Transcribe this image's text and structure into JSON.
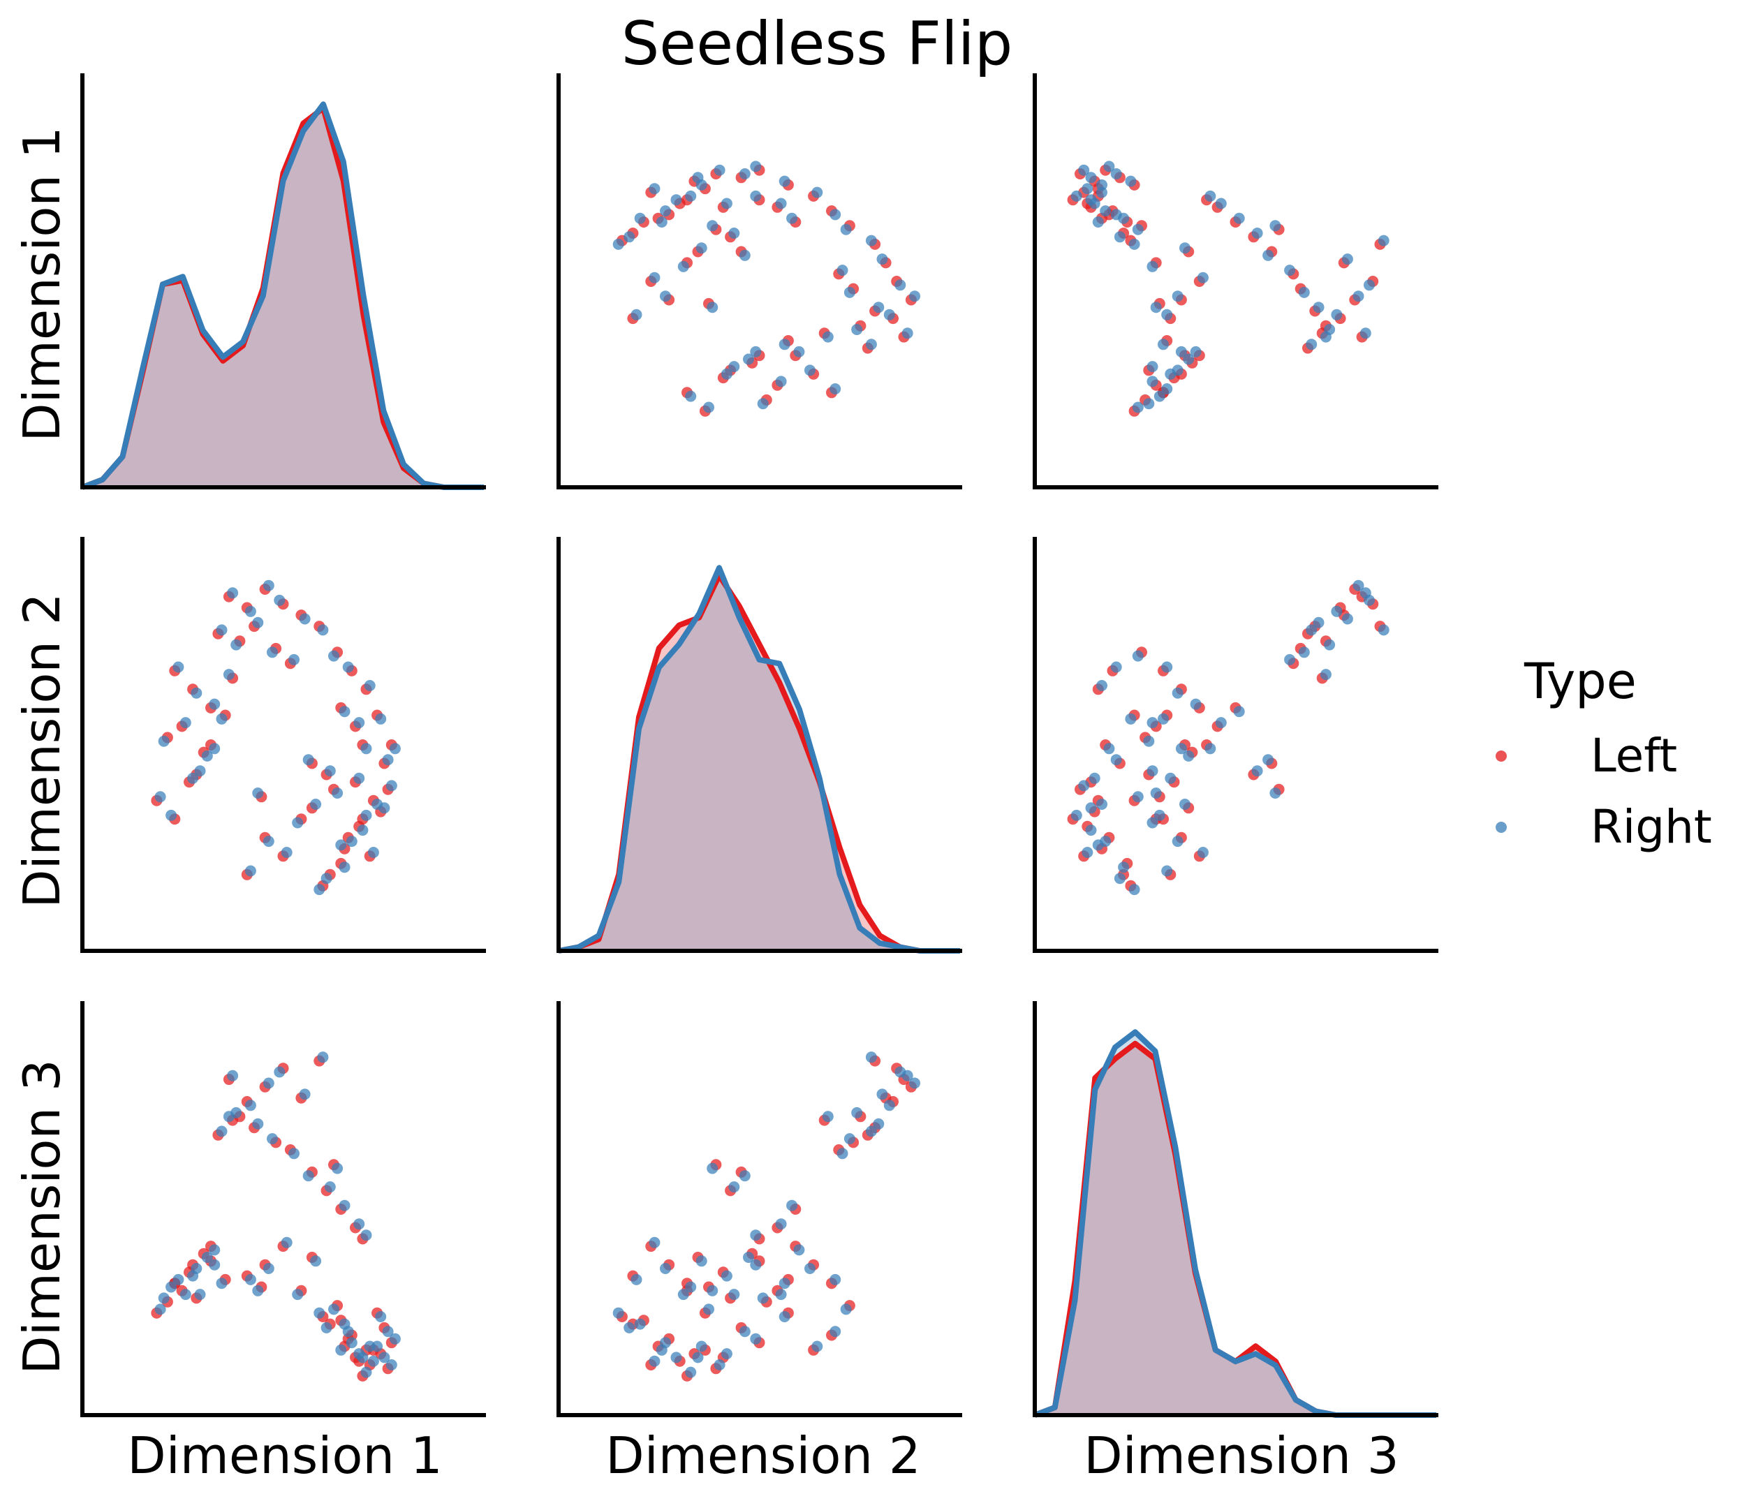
{
  "chart_data": {
    "type": "scatter",
    "kind": "pairplot",
    "title": "Seedless Flip",
    "variables": [
      "Dimension 1",
      "Dimension 2",
      "Dimension 3"
    ],
    "diagonal": "kde",
    "offdiagonal": "scatter",
    "ticks_shown": false,
    "grid": false,
    "legend": {
      "title": "Type",
      "placement": "right",
      "entries": [
        {
          "label": "Left",
          "color": "#e41a1c"
        },
        {
          "label": "Right",
          "color": "#377eb8"
        }
      ]
    },
    "series_colors": {
      "Left": "#e41a1c",
      "Right": "#377eb8"
    },
    "fill_overlap_color": "#c5b2c3",
    "axis_ranges": {
      "Dimension 1": [
        0.0,
        1.0
      ],
      "Dimension 2": [
        0.0,
        1.0
      ],
      "Dimension 3": [
        0.0,
        1.0
      ]
    },
    "kde_range": [
      0.0,
      1.0
    ],
    "kde": {
      "Dimension 1": {
        "Left": {
          "x": [
            0.0,
            0.05,
            0.1,
            0.15,
            0.2,
            0.25,
            0.3,
            0.35,
            0.4,
            0.45,
            0.5,
            0.55,
            0.6,
            0.65,
            0.7,
            0.75,
            0.8,
            0.85,
            0.9,
            0.95,
            1.0
          ],
          "y": [
            0.0,
            0.02,
            0.08,
            0.3,
            0.53,
            0.54,
            0.4,
            0.33,
            0.37,
            0.52,
            0.82,
            0.95,
            0.99,
            0.8,
            0.45,
            0.17,
            0.05,
            0.01,
            0.0,
            0.0,
            0.0
          ]
        },
        "Right": {
          "x": [
            0.0,
            0.05,
            0.1,
            0.15,
            0.2,
            0.25,
            0.3,
            0.35,
            0.4,
            0.45,
            0.5,
            0.55,
            0.6,
            0.65,
            0.7,
            0.75,
            0.8,
            0.85,
            0.9,
            0.95,
            1.0
          ],
          "y": [
            0.0,
            0.02,
            0.08,
            0.31,
            0.53,
            0.55,
            0.41,
            0.34,
            0.38,
            0.5,
            0.8,
            0.93,
            1.0,
            0.85,
            0.5,
            0.2,
            0.06,
            0.01,
            0.0,
            0.0,
            0.0
          ]
        }
      },
      "Dimension 2": {
        "Left": {
          "x": [
            0.0,
            0.05,
            0.1,
            0.15,
            0.2,
            0.25,
            0.3,
            0.35,
            0.4,
            0.45,
            0.5,
            0.55,
            0.6,
            0.65,
            0.7,
            0.75,
            0.8,
            0.85,
            0.9,
            0.95,
            1.0
          ],
          "y": [
            0.0,
            0.01,
            0.03,
            0.2,
            0.61,
            0.79,
            0.85,
            0.87,
            0.98,
            0.9,
            0.8,
            0.7,
            0.58,
            0.44,
            0.27,
            0.12,
            0.04,
            0.01,
            0.0,
            0.0,
            0.0
          ]
        },
        "Right": {
          "x": [
            0.0,
            0.05,
            0.1,
            0.15,
            0.2,
            0.25,
            0.3,
            0.35,
            0.4,
            0.45,
            0.5,
            0.55,
            0.6,
            0.65,
            0.7,
            0.75,
            0.8,
            0.85,
            0.9,
            0.95,
            1.0
          ],
          "y": [
            0.0,
            0.01,
            0.04,
            0.18,
            0.58,
            0.74,
            0.8,
            0.88,
            1.0,
            0.87,
            0.76,
            0.75,
            0.63,
            0.45,
            0.2,
            0.06,
            0.02,
            0.01,
            0.0,
            0.0,
            0.0
          ]
        }
      },
      "Dimension 3": {
        "Left": {
          "x": [
            0.0,
            0.05,
            0.1,
            0.15,
            0.2,
            0.25,
            0.3,
            0.35,
            0.4,
            0.45,
            0.5,
            0.55,
            0.6,
            0.65,
            0.7,
            0.75,
            0.8,
            0.85,
            0.9,
            0.95,
            1.0
          ],
          "y": [
            0.0,
            0.02,
            0.35,
            0.88,
            0.93,
            0.97,
            0.93,
            0.68,
            0.37,
            0.17,
            0.14,
            0.18,
            0.14,
            0.04,
            0.01,
            0.0,
            0.0,
            0.0,
            0.0,
            0.0,
            0.0
          ]
        },
        "Right": {
          "x": [
            0.0,
            0.05,
            0.1,
            0.15,
            0.2,
            0.25,
            0.3,
            0.35,
            0.4,
            0.45,
            0.5,
            0.55,
            0.6,
            0.65,
            0.7,
            0.75,
            0.8,
            0.85,
            0.9,
            0.95,
            1.0
          ],
          "y": [
            0.0,
            0.02,
            0.3,
            0.85,
            0.96,
            1.0,
            0.95,
            0.7,
            0.38,
            0.17,
            0.14,
            0.16,
            0.13,
            0.04,
            0.01,
            0.0,
            0.0,
            0.0,
            0.0,
            0.0,
            0.0
          ]
        }
      }
    },
    "points": {
      "Left": [
        [
          0.35,
          0.9,
          0.85
        ],
        [
          0.5,
          0.88,
          0.88
        ],
        [
          0.55,
          0.85,
          0.8
        ],
        [
          0.45,
          0.92,
          0.83
        ],
        [
          0.4,
          0.87,
          0.79
        ],
        [
          0.6,
          0.82,
          0.9
        ],
        [
          0.2,
          0.7,
          0.3
        ],
        [
          0.25,
          0.65,
          0.35
        ],
        [
          0.22,
          0.55,
          0.28
        ],
        [
          0.3,
          0.6,
          0.4
        ],
        [
          0.18,
          0.52,
          0.25
        ],
        [
          0.28,
          0.48,
          0.38
        ],
        [
          0.7,
          0.4,
          0.1
        ],
        [
          0.75,
          0.35,
          0.12
        ],
        [
          0.72,
          0.3,
          0.05
        ],
        [
          0.68,
          0.25,
          0.15
        ],
        [
          0.74,
          0.2,
          0.08
        ],
        [
          0.66,
          0.18,
          0.2
        ],
        [
          0.62,
          0.42,
          0.55
        ],
        [
          0.64,
          0.38,
          0.62
        ],
        [
          0.58,
          0.45,
          0.6
        ],
        [
          0.7,
          0.55,
          0.45
        ],
        [
          0.66,
          0.6,
          0.5
        ],
        [
          0.72,
          0.5,
          0.42
        ],
        [
          0.15,
          0.35,
          0.22
        ],
        [
          0.2,
          0.3,
          0.3
        ],
        [
          0.45,
          0.25,
          0.35
        ],
        [
          0.5,
          0.2,
          0.4
        ],
        [
          0.4,
          0.15,
          0.32
        ],
        [
          0.55,
          0.3,
          0.28
        ],
        [
          0.78,
          0.45,
          0.18
        ],
        [
          0.8,
          0.5,
          0.14
        ],
        [
          0.76,
          0.58,
          0.22
        ],
        [
          0.73,
          0.65,
          0.12
        ],
        [
          0.69,
          0.7,
          0.16
        ],
        [
          0.65,
          0.75,
          0.24
        ],
        [
          0.32,
          0.8,
          0.7
        ],
        [
          0.38,
          0.78,
          0.75
        ],
        [
          0.42,
          0.82,
          0.72
        ],
        [
          0.48,
          0.76,
          0.68
        ],
        [
          0.52,
          0.72,
          0.66
        ],
        [
          0.36,
          0.68,
          0.74
        ],
        [
          0.24,
          0.4,
          0.33
        ],
        [
          0.26,
          0.42,
          0.26
        ],
        [
          0.3,
          0.5,
          0.36
        ],
        [
          0.34,
          0.58,
          0.31
        ],
        [
          0.44,
          0.36,
          0.29
        ],
        [
          0.58,
          0.33,
          0.37
        ],
        [
          0.71,
          0.28,
          0.09
        ],
        [
          0.77,
          0.32,
          0.11
        ],
        [
          0.79,
          0.38,
          0.07
        ],
        [
          0.67,
          0.22,
          0.13
        ],
        [
          0.63,
          0.15,
          0.19
        ],
        [
          0.61,
          0.12,
          0.21
        ]
      ],
      "Right": [
        [
          0.36,
          0.91,
          0.86
        ],
        [
          0.49,
          0.89,
          0.87
        ],
        [
          0.56,
          0.84,
          0.81
        ],
        [
          0.46,
          0.93,
          0.84
        ],
        [
          0.41,
          0.86,
          0.78
        ],
        [
          0.61,
          0.81,
          0.91
        ],
        [
          0.21,
          0.71,
          0.31
        ],
        [
          0.26,
          0.64,
          0.34
        ],
        [
          0.23,
          0.56,
          0.27
        ],
        [
          0.31,
          0.61,
          0.39
        ],
        [
          0.17,
          0.51,
          0.26
        ],
        [
          0.29,
          0.47,
          0.37
        ],
        [
          0.71,
          0.41,
          0.11
        ],
        [
          0.76,
          0.34,
          0.13
        ],
        [
          0.73,
          0.31,
          0.06
        ],
        [
          0.69,
          0.24,
          0.14
        ],
        [
          0.75,
          0.21,
          0.09
        ],
        [
          0.67,
          0.17,
          0.19
        ],
        [
          0.63,
          0.43,
          0.56
        ],
        [
          0.65,
          0.37,
          0.61
        ],
        [
          0.57,
          0.46,
          0.59
        ],
        [
          0.71,
          0.56,
          0.46
        ],
        [
          0.67,
          0.59,
          0.51
        ],
        [
          0.73,
          0.49,
          0.43
        ],
        [
          0.16,
          0.36,
          0.23
        ],
        [
          0.19,
          0.31,
          0.29
        ],
        [
          0.46,
          0.24,
          0.34
        ],
        [
          0.51,
          0.21,
          0.41
        ],
        [
          0.41,
          0.16,
          0.31
        ],
        [
          0.54,
          0.29,
          0.27
        ],
        [
          0.79,
          0.46,
          0.17
        ],
        [
          0.81,
          0.49,
          0.15
        ],
        [
          0.77,
          0.57,
          0.21
        ],
        [
          0.74,
          0.66,
          0.13
        ],
        [
          0.68,
          0.71,
          0.17
        ],
        [
          0.64,
          0.74,
          0.23
        ],
        [
          0.33,
          0.81,
          0.71
        ],
        [
          0.37,
          0.77,
          0.76
        ],
        [
          0.43,
          0.83,
          0.73
        ],
        [
          0.47,
          0.75,
          0.69
        ],
        [
          0.53,
          0.73,
          0.65
        ],
        [
          0.35,
          0.69,
          0.75
        ],
        [
          0.25,
          0.41,
          0.32
        ],
        [
          0.27,
          0.43,
          0.27
        ],
        [
          0.31,
          0.49,
          0.35
        ],
        [
          0.33,
          0.57,
          0.3
        ],
        [
          0.43,
          0.37,
          0.28
        ],
        [
          0.59,
          0.34,
          0.36
        ],
        [
          0.72,
          0.27,
          0.1
        ],
        [
          0.78,
          0.33,
          0.1
        ],
        [
          0.8,
          0.39,
          0.08
        ],
        [
          0.66,
          0.23,
          0.12
        ],
        [
          0.62,
          0.14,
          0.18
        ],
        [
          0.6,
          0.11,
          0.22
        ]
      ]
    }
  }
}
